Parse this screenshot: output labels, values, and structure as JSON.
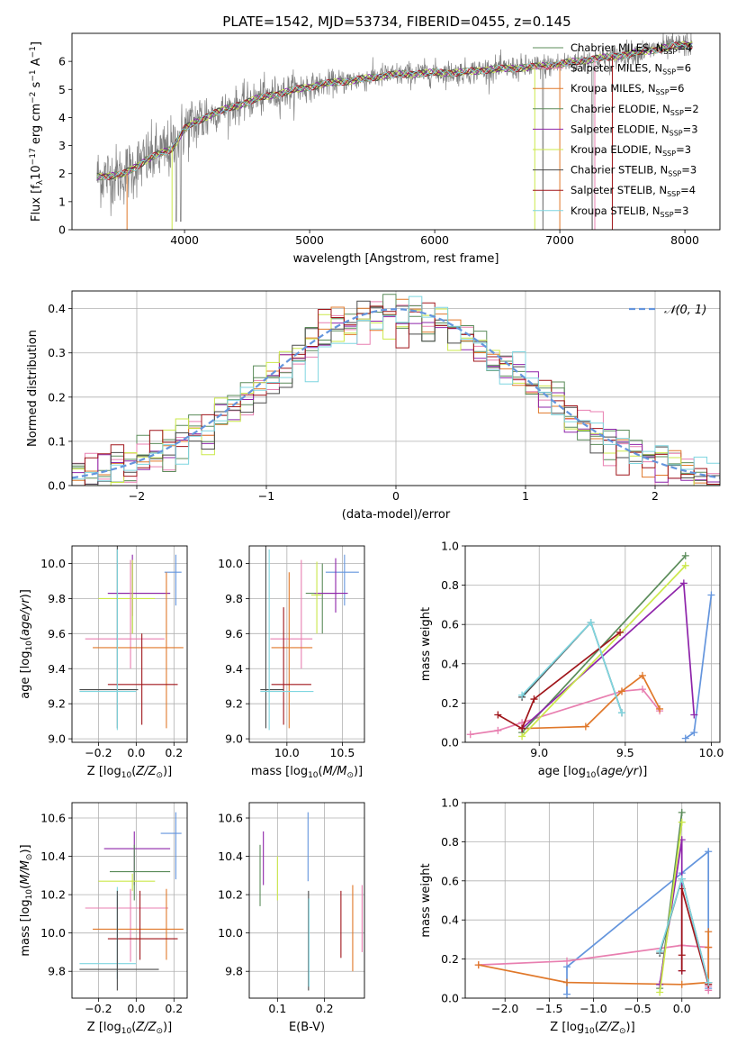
{
  "figure": {
    "title": "PLATE=1542, MJD=53734, FIBERID=0455, z=0.145"
  },
  "legend_entries": [
    {
      "base": "Chabrier MILES, N",
      "sub": "SSP",
      "tail": "=4",
      "color": "#5b8c5a"
    },
    {
      "base": "Salpeter MILES, N",
      "sub": "SSP",
      "tail": "=6",
      "color": "#e87fb0"
    },
    {
      "base": "Kroupa MILES, N",
      "sub": "SSP",
      "tail": "=6",
      "color": "#e0782a"
    },
    {
      "base": "Chabrier ELODIE, N",
      "sub": "SSP",
      "tail": "=2",
      "color": "#5b8c5a"
    },
    {
      "base": "Salpeter ELODIE, N",
      "sub": "SSP",
      "tail": "=3",
      "color": "#8e24aa"
    },
    {
      "base": "Kroupa ELODIE, N",
      "sub": "SSP",
      "tail": "=3",
      "color": "#cbe84a"
    },
    {
      "base": "Chabrier STELIB, N",
      "sub": "SSP",
      "tail": "=3",
      "color": "#4a4a4a"
    },
    {
      "base": "Salpeter STELIB, N",
      "sub": "SSP",
      "tail": "=4",
      "color": "#a0161b"
    },
    {
      "base": "Kroupa STELIB, N",
      "sub": "SSP",
      "tail": "=3",
      "color": "#7fd6e0"
    }
  ],
  "chart_data": [
    {
      "id": "spectrum",
      "type": "line",
      "xlabel": "wavelength [Angstrom, rest frame]",
      "ylabel": "Flux [f_λ10^-17 erg cm^-2 s^-1 A^-1]",
      "xlim": [
        3100,
        8280
      ],
      "ylim": [
        0,
        7
      ],
      "xticks": [
        4000,
        5000,
        6000,
        7000,
        8000
      ],
      "yticks": [
        0,
        1,
        2,
        3,
        4,
        5,
        6
      ],
      "grid": false,
      "legend_position": "right",
      "data_color": "#808080",
      "continuum": {
        "x": [
          3300,
          3500,
          3700,
          3900,
          4000,
          4200,
          4400,
          4600,
          4800,
          5000,
          5200,
          5400,
          5600,
          5800,
          6000,
          6200,
          6400,
          6600,
          6800,
          7000,
          7200,
          7400,
          7600,
          7800,
          8000
        ],
        "y": [
          1.9,
          1.95,
          2.5,
          2.9,
          3.6,
          4.1,
          4.4,
          4.7,
          4.9,
          5.1,
          5.25,
          5.35,
          5.5,
          5.55,
          5.6,
          5.6,
          5.7,
          5.75,
          5.8,
          5.9,
          6.05,
          6.15,
          6.3,
          6.45,
          6.6
        ]
      }
    },
    {
      "id": "residuals",
      "type": "histogram",
      "xlabel": "(data-model)/error",
      "ylabel": "Normed distribution",
      "xlim": [
        -2.5,
        2.5
      ],
      "ylim": [
        0,
        0.44
      ],
      "xticks": [
        -2,
        -1,
        0,
        1,
        2
      ],
      "yticks": [
        0.0,
        0.1,
        0.2,
        0.3,
        0.4
      ],
      "grid": true,
      "legend": {
        "label": "𝒩(0, 1)",
        "position": "top-right"
      },
      "gaussian_color": "#6495dd",
      "bin_width": 0.1
    },
    {
      "id": "z_age",
      "type": "errorbar",
      "xlabel": "Z [log10(Z/Z⊙)]",
      "ylabel": "age [log10(age/yr)]",
      "xlim": [
        -0.34,
        0.27
      ],
      "ylim": [
        8.98,
        10.1
      ],
      "xticks": [
        -0.2,
        0.0,
        0.2
      ],
      "yticks": [
        9.0,
        9.2,
        9.4,
        9.6,
        9.8,
        10.0
      ],
      "grid": true,
      "points": [
        {
          "color": "#6495dd",
          "x": 0.21,
          "y": 9.95,
          "xe": [
            0.15,
            0.24
          ],
          "ye": [
            9.76,
            10.05
          ]
        },
        {
          "color": "#5b8c5a",
          "x": -0.02,
          "y": 9.83,
          "xe": [
            -0.15,
            0.18
          ],
          "ye": [
            9.6,
            10.0
          ]
        },
        {
          "color": "#8e24aa",
          "x": -0.02,
          "y": 9.83,
          "xe": [
            -0.15,
            0.18
          ],
          "ye": [
            9.7,
            10.05
          ]
        },
        {
          "color": "#cbe84a",
          "x": -0.02,
          "y": 9.8,
          "xe": [
            -0.2,
            0.1
          ],
          "ye": [
            9.6,
            10.02
          ]
        },
        {
          "color": "#e87fb0",
          "x": -0.03,
          "y": 9.57,
          "xe": [
            -0.27,
            0.15
          ],
          "ye": [
            9.4,
            10.02
          ]
        },
        {
          "color": "#e0782a",
          "x": 0.16,
          "y": 9.52,
          "xe": [
            -0.23,
            0.25
          ],
          "ye": [
            9.06,
            9.95
          ]
        },
        {
          "color": "#a0161b",
          "x": 0.03,
          "y": 9.31,
          "xe": [
            -0.15,
            0.22
          ],
          "ye": [
            9.08,
            9.6
          ]
        },
        {
          "color": "#4a4a4a",
          "x": -0.1,
          "y": 9.28,
          "xe": [
            -0.3,
            0.01
          ],
          "ye": [
            9.06,
            10.1
          ]
        },
        {
          "color": "#7fd6e0",
          "x": -0.1,
          "y": 9.27,
          "xe": [
            -0.3,
            0.0
          ],
          "ye": [
            9.05,
            10.08
          ]
        }
      ]
    },
    {
      "id": "mass_age",
      "type": "errorbar",
      "xlabel": "mass [log10(M/M⊙)]",
      "ylabel": "",
      "xlim": [
        9.66,
        10.7
      ],
      "ylim": [
        8.98,
        10.1
      ],
      "xticks": [
        10.0,
        10.5
      ],
      "yticks": [
        9.0,
        9.2,
        9.4,
        9.6,
        9.8,
        10.0
      ],
      "grid": true,
      "points": [
        {
          "color": "#6495dd",
          "x": 10.52,
          "y": 9.95,
          "xe": [
            10.35,
            10.65
          ],
          "ye": [
            9.76,
            10.05
          ]
        },
        {
          "color": "#5b8c5a",
          "x": 10.32,
          "y": 9.83,
          "xe": [
            10.17,
            10.46
          ],
          "ye": [
            9.6,
            10.0
          ]
        },
        {
          "color": "#8e24aa",
          "x": 10.44,
          "y": 9.83,
          "xe": [
            10.25,
            10.55
          ],
          "ye": [
            9.72,
            10.03
          ]
        },
        {
          "color": "#cbe84a",
          "x": 10.27,
          "y": 9.82,
          "xe": [
            10.22,
            10.31
          ],
          "ye": [
            9.6,
            10.01
          ]
        },
        {
          "color": "#e87fb0",
          "x": 10.13,
          "y": 9.57,
          "xe": [
            9.85,
            10.23
          ],
          "ye": [
            9.4,
            10.02
          ]
        },
        {
          "color": "#e0782a",
          "x": 10.02,
          "y": 9.52,
          "xe": [
            9.86,
            10.23
          ],
          "ye": [
            9.06,
            9.95
          ]
        },
        {
          "color": "#a0161b",
          "x": 9.97,
          "y": 9.31,
          "xe": [
            9.86,
            10.22
          ],
          "ye": [
            9.08,
            9.75
          ]
        },
        {
          "color": "#4a4a4a",
          "x": 9.81,
          "y": 9.28,
          "xe": [
            9.76,
            9.97
          ],
          "ye": [
            9.06,
            10.1
          ]
        },
        {
          "color": "#7fd6e0",
          "x": 9.84,
          "y": 9.27,
          "xe": [
            9.76,
            10.24
          ],
          "ye": [
            9.05,
            10.08
          ]
        }
      ]
    },
    {
      "id": "age_weight",
      "type": "line",
      "xlabel": "age [log10(age/yr)]",
      "ylabel": "mass weight",
      "xlim": [
        8.57,
        10.05
      ],
      "ylim": [
        0.0,
        1.0
      ],
      "xticks": [
        9.0,
        9.5,
        10.0
      ],
      "yticks": [
        0.0,
        0.2,
        0.4,
        0.6,
        0.8,
        1.0
      ],
      "grid": true,
      "series": [
        {
          "color": "#6495dd",
          "x": [
            9.85,
            9.9,
            10.0
          ],
          "y": [
            0.02,
            0.05,
            0.75
          ]
        },
        {
          "color": "#e87fb0",
          "x": [
            8.6,
            8.76,
            8.9,
            9.48,
            9.6,
            9.7
          ],
          "y": [
            0.04,
            0.06,
            0.1,
            0.26,
            0.27,
            0.16
          ]
        },
        {
          "color": "#e0782a",
          "x": [
            8.9,
            9.27,
            9.48,
            9.6,
            9.7
          ],
          "y": [
            0.07,
            0.08,
            0.26,
            0.34,
            0.17
          ]
        },
        {
          "color": "#5b8c5a",
          "x": [
            8.9,
            9.85
          ],
          "y": [
            0.05,
            0.95
          ]
        },
        {
          "color": "#8e24aa",
          "x": [
            8.9,
            9.84,
            9.9
          ],
          "y": [
            0.07,
            0.81,
            0.14
          ]
        },
        {
          "color": "#cbe84a",
          "x": [
            8.9,
            9.85
          ],
          "y": [
            0.03,
            0.9
          ]
        },
        {
          "color": "#4a4a4a",
          "x": [
            8.9,
            9.3,
            9.48
          ],
          "y": [
            0.23,
            0.61,
            0.15
          ]
        },
        {
          "color": "#a0161b",
          "x": [
            8.76,
            8.9,
            8.97,
            9.47
          ],
          "y": [
            0.14,
            0.07,
            0.22,
            0.56
          ]
        },
        {
          "color": "#7fd6e0",
          "x": [
            8.9,
            9.3,
            9.48
          ],
          "y": [
            0.24,
            0.61,
            0.15
          ]
        }
      ]
    },
    {
      "id": "z_mass",
      "type": "errorbar",
      "xlabel": "Z [log10(Z/Z⊙)]",
      "ylabel": "mass [log10(M/M⊙)]",
      "xlim": [
        -0.34,
        0.27
      ],
      "ylim": [
        9.66,
        10.68
      ],
      "xticks": [
        -0.2,
        0.0,
        0.2
      ],
      "yticks": [
        9.8,
        10.0,
        10.2,
        10.4,
        10.6
      ],
      "grid": true,
      "points": [
        {
          "color": "#6495dd",
          "x": 0.21,
          "y": 10.52,
          "xe": [
            0.13,
            0.24
          ],
          "ye": [
            10.28,
            10.63
          ]
        },
        {
          "color": "#8e24aa",
          "x": -0.01,
          "y": 10.44,
          "xe": [
            -0.17,
            0.18
          ],
          "ye": [
            10.25,
            10.53
          ]
        },
        {
          "color": "#5b8c5a",
          "x": -0.01,
          "y": 10.32,
          "xe": [
            -0.14,
            0.18
          ],
          "ye": [
            10.17,
            10.46
          ]
        },
        {
          "color": "#cbe84a",
          "x": -0.02,
          "y": 10.27,
          "xe": [
            -0.2,
            0.1
          ],
          "ye": [
            10.22,
            10.31
          ]
        },
        {
          "color": "#e87fb0",
          "x": -0.03,
          "y": 10.13,
          "xe": [
            -0.27,
            0.17
          ],
          "ye": [
            9.85,
            10.23
          ]
        },
        {
          "color": "#e0782a",
          "x": 0.16,
          "y": 10.02,
          "xe": [
            -0.23,
            0.25
          ],
          "ye": [
            9.86,
            10.23
          ]
        },
        {
          "color": "#a0161b",
          "x": 0.02,
          "y": 9.97,
          "xe": [
            -0.15,
            0.22
          ],
          "ye": [
            9.86,
            10.22
          ]
        },
        {
          "color": "#7fd6e0",
          "x": -0.1,
          "y": 9.84,
          "xe": [
            -0.3,
            0.0
          ],
          "ye": [
            9.76,
            10.24
          ]
        },
        {
          "color": "#4a4a4a",
          "x": -0.1,
          "y": 9.81,
          "xe": [
            -0.3,
            0.12
          ],
          "ye": [
            9.7,
            10.22
          ]
        }
      ]
    },
    {
      "id": "ebv_mass",
      "type": "errorbar",
      "xlabel": "E(B-V)",
      "ylabel": "",
      "xlim": [
        0.04,
        0.285
      ],
      "ylim": [
        9.66,
        10.68
      ],
      "xticks": [
        0.1,
        0.2
      ],
      "yticks": [
        9.8,
        10.0,
        10.2,
        10.4,
        10.6
      ],
      "grid": true,
      "points": [
        {
          "color": "#5b8c5a",
          "ye": [
            10.14,
            10.46
          ],
          "x": 0.063
        },
        {
          "color": "#8e24aa",
          "ye": [
            10.25,
            10.53
          ],
          "x": 0.07
        },
        {
          "color": "#cbe84a",
          "ye": [
            10.17,
            10.4
          ],
          "x": 0.1
        },
        {
          "color": "#6495dd",
          "ye": [
            10.27,
            10.63
          ],
          "x": 0.165
        },
        {
          "color": "#4a4a4a",
          "ye": [
            9.7,
            10.22
          ],
          "x": 0.166
        },
        {
          "color": "#7fd6e0",
          "ye": [
            9.72,
            10.18
          ],
          "x": 0.167
        },
        {
          "color": "#a0161b",
          "ye": [
            9.87,
            10.22
          ],
          "x": 0.235
        },
        {
          "color": "#e0782a",
          "ye": [
            9.8,
            10.25
          ],
          "x": 0.26
        },
        {
          "color": "#e87fb0",
          "ye": [
            9.9,
            10.25
          ],
          "x": 0.28
        }
      ]
    },
    {
      "id": "z_weight",
      "type": "line",
      "xlabel": "Z [log10(Z/Z⊙)]",
      "ylabel": "mass weight",
      "xlim": [
        -2.45,
        0.43
      ],
      "ylim": [
        0.0,
        1.0
      ],
      "xticks": [
        -2.0,
        -1.5,
        -1.0,
        -0.5,
        0.0
      ],
      "yticks": [
        0.0,
        0.2,
        0.4,
        0.6,
        0.8,
        1.0
      ],
      "grid": true,
      "series": [
        {
          "color": "#6495dd",
          "x": [
            -1.3,
            -1.3,
            0.0,
            0.3,
            0.3
          ],
          "y": [
            0.02,
            0.16,
            0.64,
            0.75,
            0.05
          ]
        },
        {
          "color": "#e87fb0",
          "x": [
            -2.3,
            -1.3,
            0.0,
            0.3,
            0.3,
            0.3
          ],
          "y": [
            0.17,
            0.19,
            0.27,
            0.26,
            0.06,
            0.04
          ]
        },
        {
          "color": "#e0782a",
          "x": [
            -2.3,
            -1.3,
            0.0,
            0.3,
            0.3,
            0.3
          ],
          "y": [
            0.17,
            0.08,
            0.07,
            0.08,
            0.26,
            0.34
          ]
        },
        {
          "color": "#5b8c5a",
          "x": [
            -0.25,
            0.0
          ],
          "y": [
            0.05,
            0.95
          ]
        },
        {
          "color": "#8e24aa",
          "x": [
            -0.25,
            0.0,
            0.0
          ],
          "y": [
            0.07,
            0.81,
            0.14
          ]
        },
        {
          "color": "#cbe84a",
          "x": [
            -0.25,
            0.0
          ],
          "y": [
            0.03,
            0.9
          ]
        },
        {
          "color": "#4a4a4a",
          "x": [
            -0.25,
            0.0,
            0.3
          ],
          "y": [
            0.23,
            0.61,
            0.08
          ]
        },
        {
          "color": "#a0161b",
          "x": [
            0.0,
            0.0,
            0.0,
            0.3
          ],
          "y": [
            0.14,
            0.22,
            0.56,
            0.07
          ]
        },
        {
          "color": "#7fd6e0",
          "x": [
            -0.25,
            0.0,
            0.3
          ],
          "y": [
            0.24,
            0.61,
            0.08
          ]
        }
      ]
    }
  ]
}
